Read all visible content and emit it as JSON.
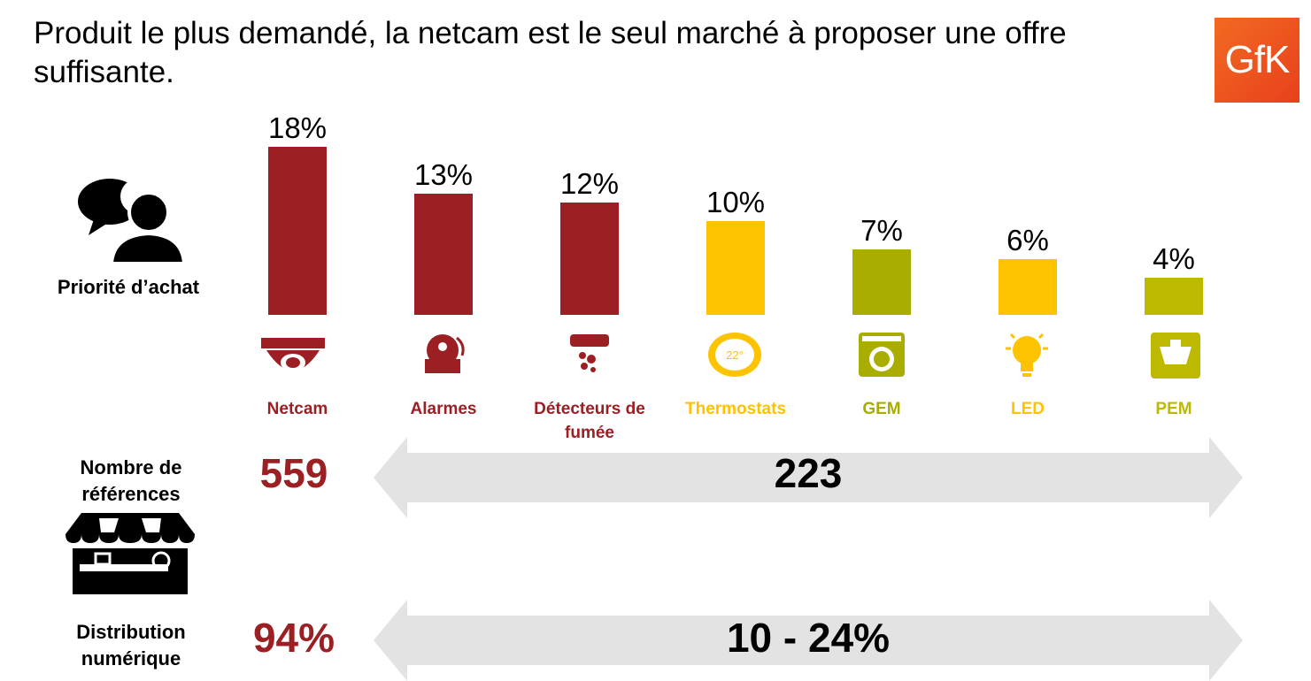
{
  "title": "Produit le plus demandé, la netcam est le seul marché à proposer une offre suffisante.",
  "logo_text": "GfK",
  "row_labels": {
    "priority": "Priorité d’achat",
    "references": "Nombre de références",
    "distribution": "Distribution numérique"
  },
  "colors": {
    "dark_red": "#9b1f23",
    "yellow": "#fdc300",
    "olive": "#a8ad00",
    "olive_light": "#bdb900",
    "arrow_gray": "#e3e3e3"
  },
  "icons": [
    "netcam-icon",
    "alarm-bell-icon",
    "smoke-detector-icon",
    "thermostat-icon",
    "washing-machine-icon",
    "light-bulb-icon",
    "kitchen-mixer-icon"
  ],
  "chart_data": {
    "type": "bar",
    "categories": [
      "Netcam",
      "Alarmes",
      "Détecteurs de fumée",
      "Thermostats",
      "GEM",
      "LED",
      "PEM"
    ],
    "values": [
      18,
      13,
      12,
      10,
      7,
      6,
      4
    ],
    "value_labels": [
      "18%",
      "13%",
      "12%",
      "10%",
      "7%",
      "6%",
      "4%"
    ],
    "bar_colors": [
      "#9b1f23",
      "#9b1f23",
      "#9b1f23",
      "#fdc300",
      "#a8ad00",
      "#fdc300",
      "#bdb900"
    ],
    "label_colors": [
      "#9b1f23",
      "#9b1f23",
      "#9b1f23",
      "#fdc300",
      "#a8ad00",
      "#fdc300",
      "#bdb900"
    ],
    "ylim": [
      0,
      18
    ]
  },
  "references": {
    "netcam": "559",
    "others": "223"
  },
  "distribution": {
    "netcam": "94%",
    "others": "10 - 24%"
  }
}
